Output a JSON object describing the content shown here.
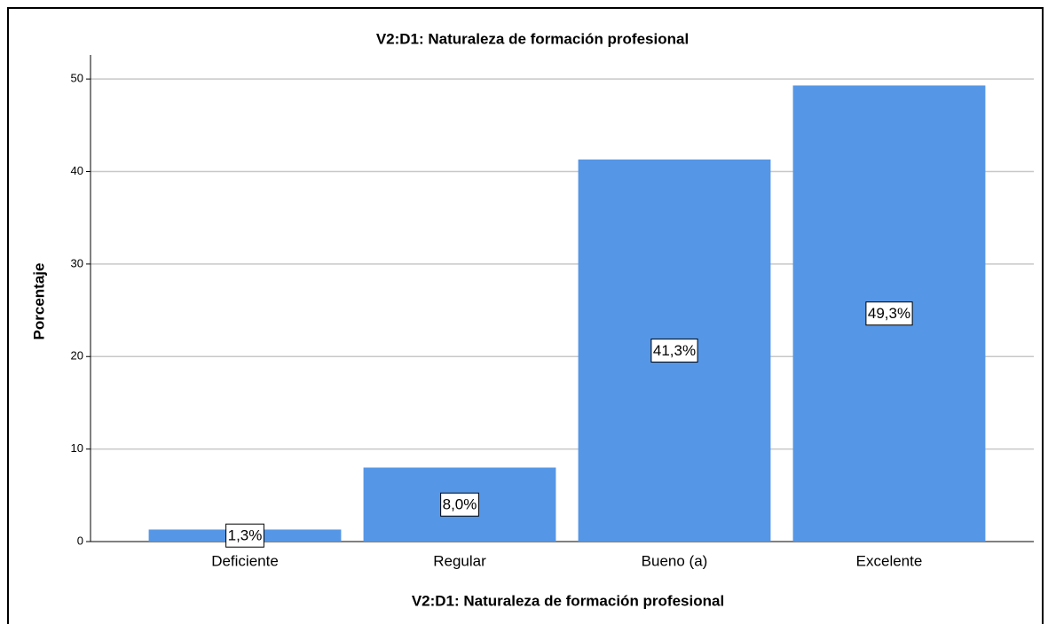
{
  "chart_data": {
    "type": "bar",
    "title": "V2:D1: Naturaleza de formación profesional",
    "x_label": "V2:D1: Naturaleza de formación profesional",
    "y_label": "Porcentaje",
    "categories": [
      "Deficiente",
      "Regular",
      "Bueno (a)",
      "Excelente"
    ],
    "values": [
      1.3,
      8.0,
      41.3,
      49.3
    ],
    "value_labels": [
      "1,3%",
      "8,0%",
      "41,3%",
      "49,3%"
    ],
    "color": "#5596e6",
    "ylim": [
      0,
      52.6
    ],
    "yticks": [
      0,
      10,
      20,
      30,
      40,
      50
    ],
    "grid": true
  }
}
